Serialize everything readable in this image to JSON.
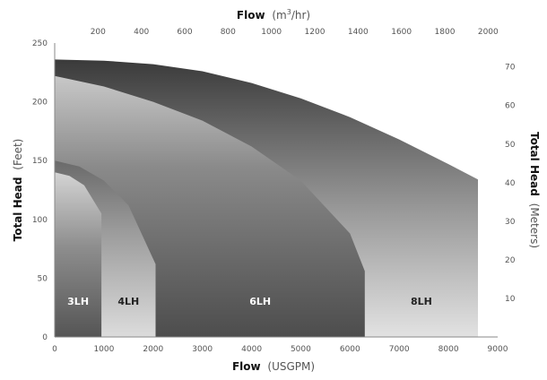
{
  "chart_data": {
    "type": "area",
    "title": "",
    "x_bottom": {
      "label_bold": "Flow",
      "label_unit": "(USGPM)",
      "range": [
        0,
        9000
      ],
      "ticks": [
        0,
        1000,
        2000,
        3000,
        4000,
        5000,
        6000,
        7000,
        8000,
        9000
      ]
    },
    "x_top": {
      "label_bold": "Flow",
      "label_unit_prefix": "(m",
      "label_unit_sup": "3",
      "label_unit_suffix": "/hr)",
      "ticks": [
        200,
        400,
        600,
        800,
        1000,
        1200,
        1400,
        1600,
        1800,
        2000
      ]
    },
    "y_left": {
      "label_bold": "Total Head",
      "label_unit": "(Feet)",
      "range": [
        0,
        250
      ],
      "ticks": [
        0,
        50,
        100,
        150,
        200,
        250
      ]
    },
    "y_right": {
      "label_bold": "Total Head",
      "label_unit": "(Meters)",
      "ticks": [
        10,
        20,
        30,
        40,
        50,
        60,
        70
      ]
    },
    "series": [
      {
        "name": "8LH",
        "max_flow": 8600,
        "curve": [
          [
            0,
            236
          ],
          [
            1000,
            235
          ],
          [
            2000,
            232
          ],
          [
            3000,
            226
          ],
          [
            4000,
            216
          ],
          [
            5000,
            203
          ],
          [
            6000,
            187
          ],
          [
            7000,
            168
          ],
          [
            8000,
            147
          ],
          [
            8600,
            134
          ]
        ]
      },
      {
        "name": "6LH",
        "max_flow": 6300,
        "curve": [
          [
            0,
            222
          ],
          [
            1000,
            213
          ],
          [
            2000,
            200
          ],
          [
            3000,
            184
          ],
          [
            4000,
            162
          ],
          [
            5000,
            133
          ],
          [
            6000,
            88
          ],
          [
            6300,
            56
          ]
        ]
      },
      {
        "name": "4LH",
        "max_flow": 2050,
        "curve": [
          [
            0,
            150
          ],
          [
            500,
            145
          ],
          [
            1000,
            133
          ],
          [
            1500,
            112
          ],
          [
            2050,
            62
          ]
        ]
      },
      {
        "name": "3LH",
        "max_flow": 950,
        "curve": [
          [
            0,
            140
          ],
          [
            300,
            137
          ],
          [
            600,
            129
          ],
          [
            950,
            105
          ]
        ]
      }
    ]
  }
}
